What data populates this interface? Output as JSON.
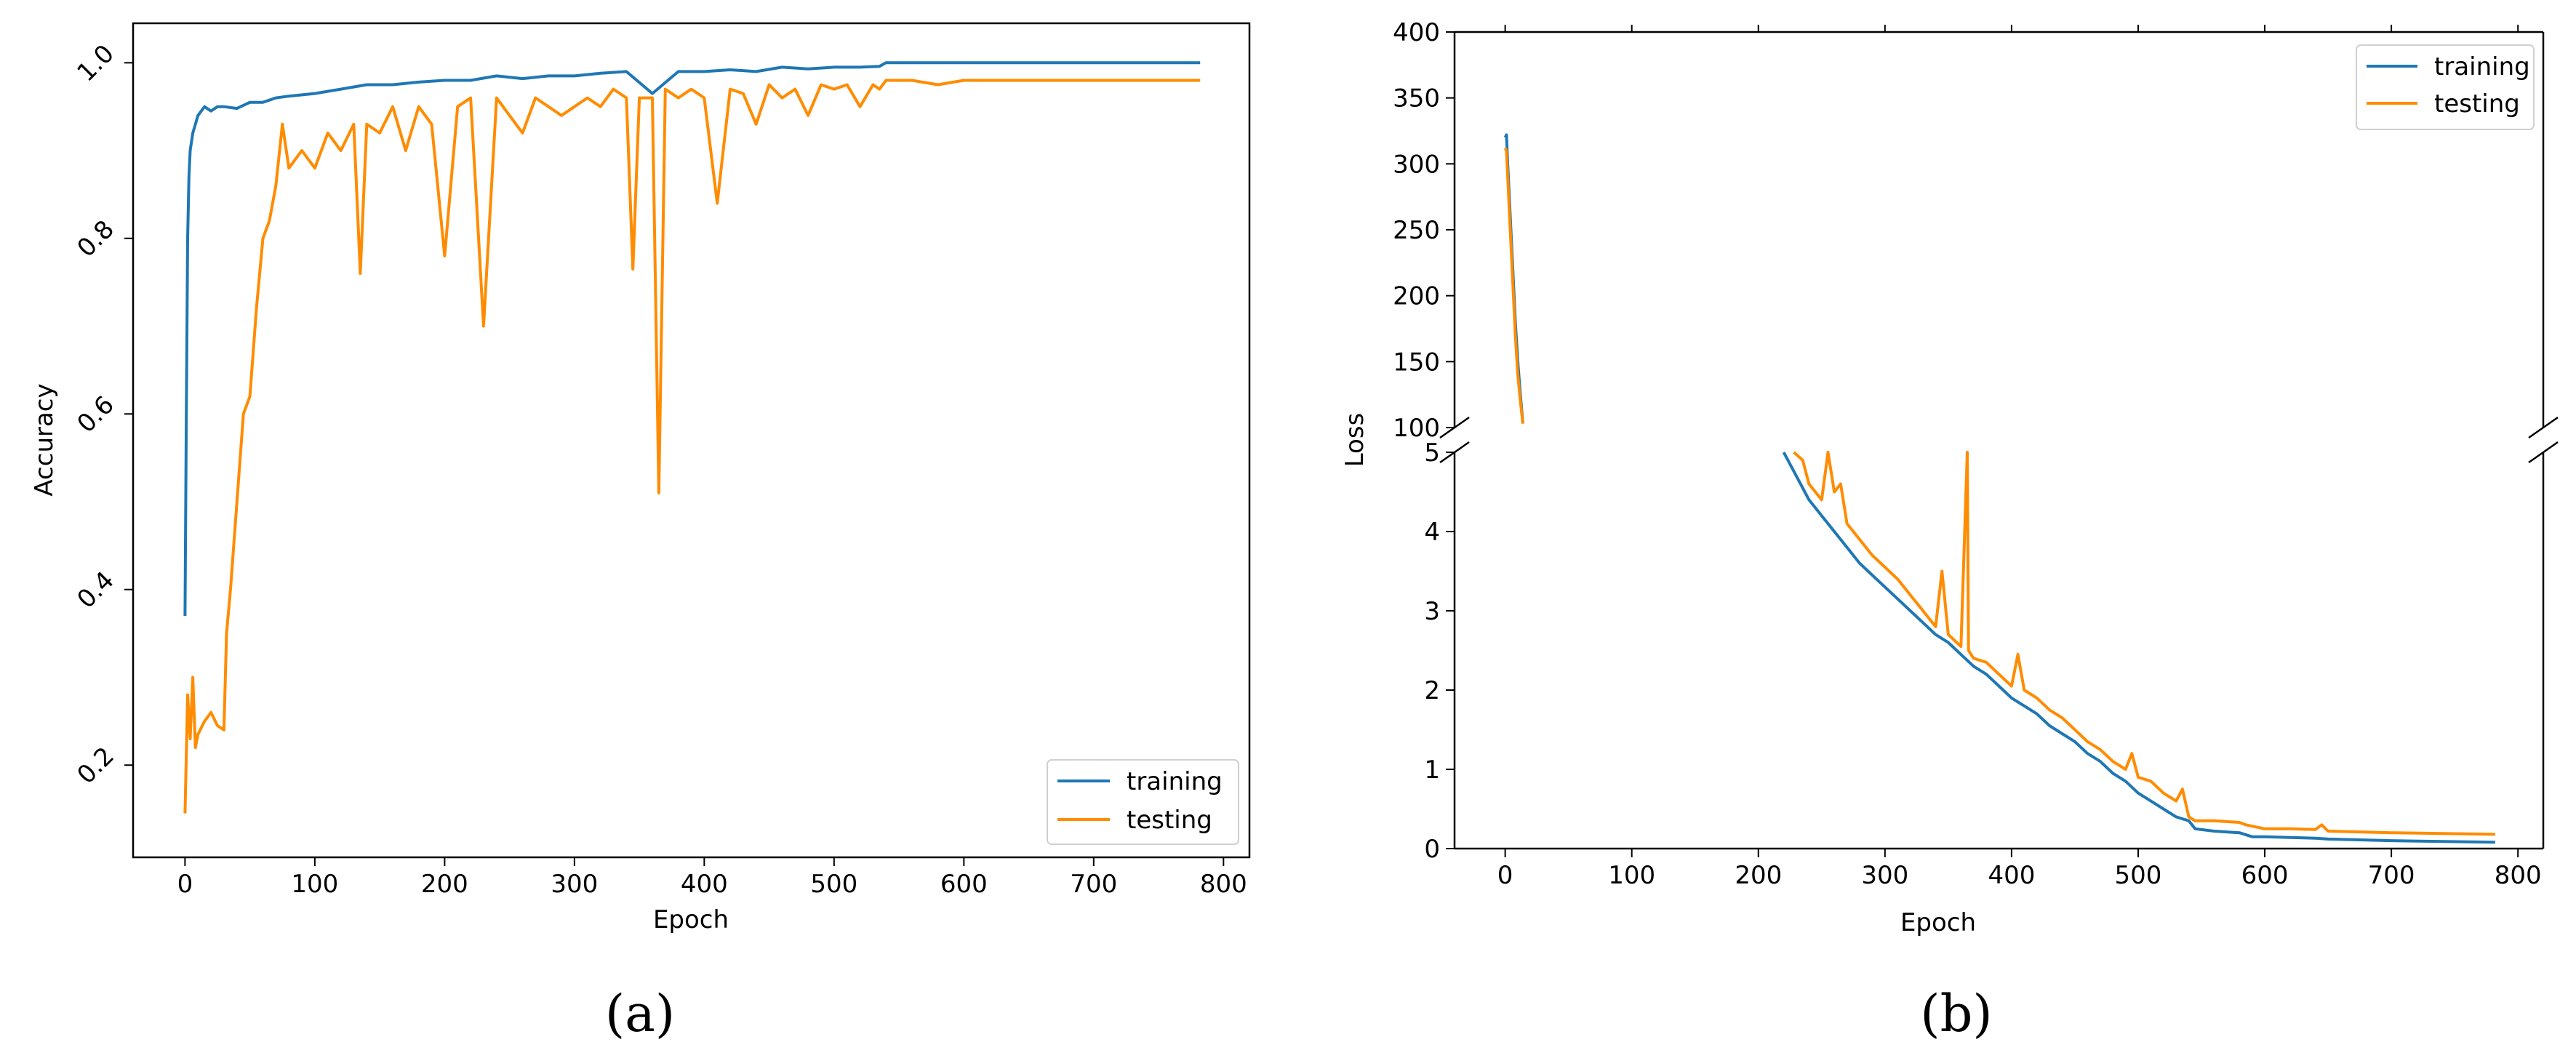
{
  "chart_data": [
    {
      "panel_label": "(a)",
      "type": "line",
      "xlabel": "Epoch",
      "ylabel": "Accuracy",
      "xlim": [
        -40,
        820
      ],
      "ylim": [
        0.095,
        1.045
      ],
      "xticks": [
        0,
        100,
        200,
        300,
        400,
        500,
        600,
        700,
        800
      ],
      "yticks": [
        0.2,
        0.4,
        0.6,
        0.8,
        1.0
      ],
      "ytick_labels": [
        "0.2",
        "0.4",
        "0.6",
        "0.8",
        "1.0"
      ],
      "grid": false,
      "legend_position": "lower-right",
      "series": [
        {
          "name": "training",
          "color": "#1f77b4",
          "x": [
            0,
            1,
            2,
            3,
            4,
            6,
            8,
            10,
            15,
            20,
            25,
            30,
            40,
            50,
            60,
            70,
            80,
            100,
            120,
            140,
            160,
            180,
            200,
            220,
            240,
            260,
            280,
            300,
            320,
            340,
            360,
            380,
            400,
            420,
            440,
            460,
            480,
            500,
            520,
            535,
            540,
            560,
            580,
            600,
            650,
            700,
            782
          ],
          "y": [
            0.37,
            0.6,
            0.8,
            0.87,
            0.9,
            0.92,
            0.93,
            0.94,
            0.95,
            0.945,
            0.95,
            0.95,
            0.948,
            0.955,
            0.955,
            0.96,
            0.962,
            0.965,
            0.97,
            0.975,
            0.975,
            0.978,
            0.98,
            0.98,
            0.985,
            0.982,
            0.985,
            0.985,
            0.988,
            0.99,
            0.965,
            0.99,
            0.99,
            0.992,
            0.99,
            0.995,
            0.993,
            0.995,
            0.995,
            0.996,
            1.0,
            1.0,
            1.0,
            1.0,
            1.0,
            1.0,
            1.0
          ]
        },
        {
          "name": "testing",
          "color": "#ff8c00",
          "x": [
            0,
            2,
            4,
            6,
            8,
            10,
            15,
            20,
            25,
            30,
            32,
            35,
            40,
            45,
            50,
            55,
            60,
            65,
            70,
            75,
            80,
            90,
            100,
            110,
            120,
            130,
            135,
            140,
            150,
            160,
            170,
            180,
            190,
            200,
            210,
            220,
            230,
            240,
            250,
            260,
            270,
            280,
            290,
            300,
            310,
            320,
            330,
            340,
            345,
            350,
            360,
            365,
            370,
            380,
            390,
            400,
            410,
            420,
            430,
            440,
            450,
            460,
            470,
            480,
            490,
            500,
            510,
            520,
            530,
            535,
            540,
            560,
            580,
            600,
            650,
            700,
            782
          ],
          "y": [
            0.145,
            0.28,
            0.23,
            0.3,
            0.22,
            0.235,
            0.25,
            0.26,
            0.245,
            0.24,
            0.35,
            0.4,
            0.5,
            0.6,
            0.62,
            0.72,
            0.8,
            0.82,
            0.86,
            0.93,
            0.88,
            0.9,
            0.88,
            0.92,
            0.9,
            0.93,
            0.76,
            0.93,
            0.92,
            0.95,
            0.9,
            0.95,
            0.93,
            0.78,
            0.95,
            0.96,
            0.7,
            0.96,
            0.94,
            0.92,
            0.96,
            0.95,
            0.94,
            0.95,
            0.96,
            0.95,
            0.97,
            0.96,
            0.765,
            0.96,
            0.96,
            0.51,
            0.97,
            0.96,
            0.97,
            0.96,
            0.84,
            0.97,
            0.965,
            0.93,
            0.975,
            0.96,
            0.97,
            0.94,
            0.975,
            0.97,
            0.975,
            0.95,
            0.975,
            0.97,
            0.98,
            0.98,
            0.975,
            0.98,
            0.98,
            0.98,
            0.98
          ]
        }
      ]
    },
    {
      "panel_label": "(b)",
      "type": "line",
      "xlabel": "Epoch",
      "ylabel": "Loss",
      "xlim": [
        -40,
        820
      ],
      "broken_y_axis": true,
      "ylim_upper": [
        100,
        400
      ],
      "ylim_lower": [
        0,
        5
      ],
      "yticks_upper": [
        100,
        150,
        200,
        250,
        300,
        350,
        400
      ],
      "yticks_lower": [
        0,
        1,
        2,
        3,
        4,
        5
      ],
      "xticks": [
        0,
        100,
        200,
        300,
        400,
        500,
        600,
        700,
        800
      ],
      "grid": false,
      "legend_position": "upper-right",
      "series": [
        {
          "name": "training",
          "color": "#1f77b4",
          "x": [
            0,
            1,
            2,
            4,
            6,
            8,
            10,
            12,
            14,
            220,
            230,
            240,
            250,
            260,
            270,
            280,
            290,
            300,
            310,
            320,
            330,
            340,
            350,
            360,
            370,
            380,
            390,
            400,
            410,
            420,
            430,
            440,
            450,
            460,
            470,
            480,
            490,
            500,
            510,
            520,
            530,
            540,
            545,
            560,
            580,
            590,
            600,
            620,
            640,
            650,
            700,
            782
          ],
          "y": [
            320,
            322,
            300,
            260,
            220,
            180,
            150,
            125,
            103,
            5,
            4.7,
            4.4,
            4.2,
            4.0,
            3.8,
            3.6,
            3.45,
            3.3,
            3.15,
            3.0,
            2.85,
            2.7,
            2.6,
            2.45,
            2.3,
            2.2,
            2.05,
            1.9,
            1.8,
            1.7,
            1.55,
            1.45,
            1.35,
            1.2,
            1.1,
            0.95,
            0.85,
            0.7,
            0.6,
            0.5,
            0.4,
            0.35,
            0.25,
            0.22,
            0.2,
            0.15,
            0.15,
            0.14,
            0.13,
            0.12,
            0.1,
            0.08
          ]
        },
        {
          "name": "testing",
          "color": "#ff8c00",
          "x": [
            0,
            1,
            2,
            4,
            6,
            8,
            10,
            12,
            14,
            228,
            235,
            240,
            250,
            255,
            260,
            265,
            270,
            280,
            290,
            300,
            310,
            320,
            330,
            340,
            345,
            350,
            360,
            365,
            366,
            370,
            380,
            390,
            400,
            405,
            410,
            420,
            430,
            440,
            450,
            460,
            470,
            480,
            490,
            495,
            500,
            510,
            520,
            530,
            535,
            540,
            545,
            560,
            580,
            585,
            600,
            620,
            640,
            645,
            650,
            700,
            782
          ],
          "y": [
            312,
            310,
            290,
            250,
            210,
            170,
            140,
            120,
            103,
            5,
            4.9,
            4.6,
            4.4,
            5.0,
            4.5,
            4.6,
            4.1,
            3.9,
            3.7,
            3.55,
            3.4,
            3.2,
            3.0,
            2.8,
            3.5,
            2.7,
            2.55,
            5.0,
            2.5,
            2.4,
            2.35,
            2.2,
            2.05,
            2.45,
            2.0,
            1.9,
            1.75,
            1.65,
            1.5,
            1.35,
            1.25,
            1.1,
            1.0,
            1.2,
            0.9,
            0.85,
            0.7,
            0.6,
            0.75,
            0.4,
            0.35,
            0.35,
            0.33,
            0.3,
            0.25,
            0.25,
            0.24,
            0.3,
            0.22,
            0.2,
            0.18
          ]
        }
      ]
    }
  ]
}
